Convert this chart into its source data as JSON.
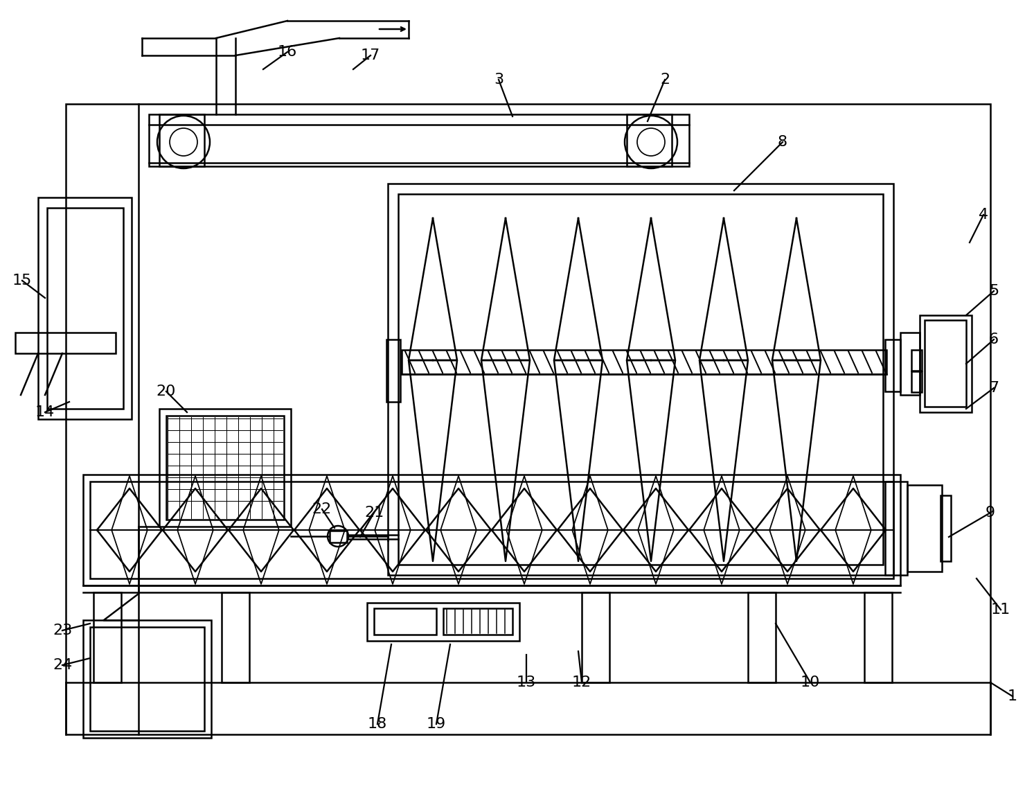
{
  "bg_color": "#ffffff",
  "line_color": "#000000",
  "lw": 1.8,
  "figsize": [
    14.93,
    11.72
  ],
  "dpi": 100
}
